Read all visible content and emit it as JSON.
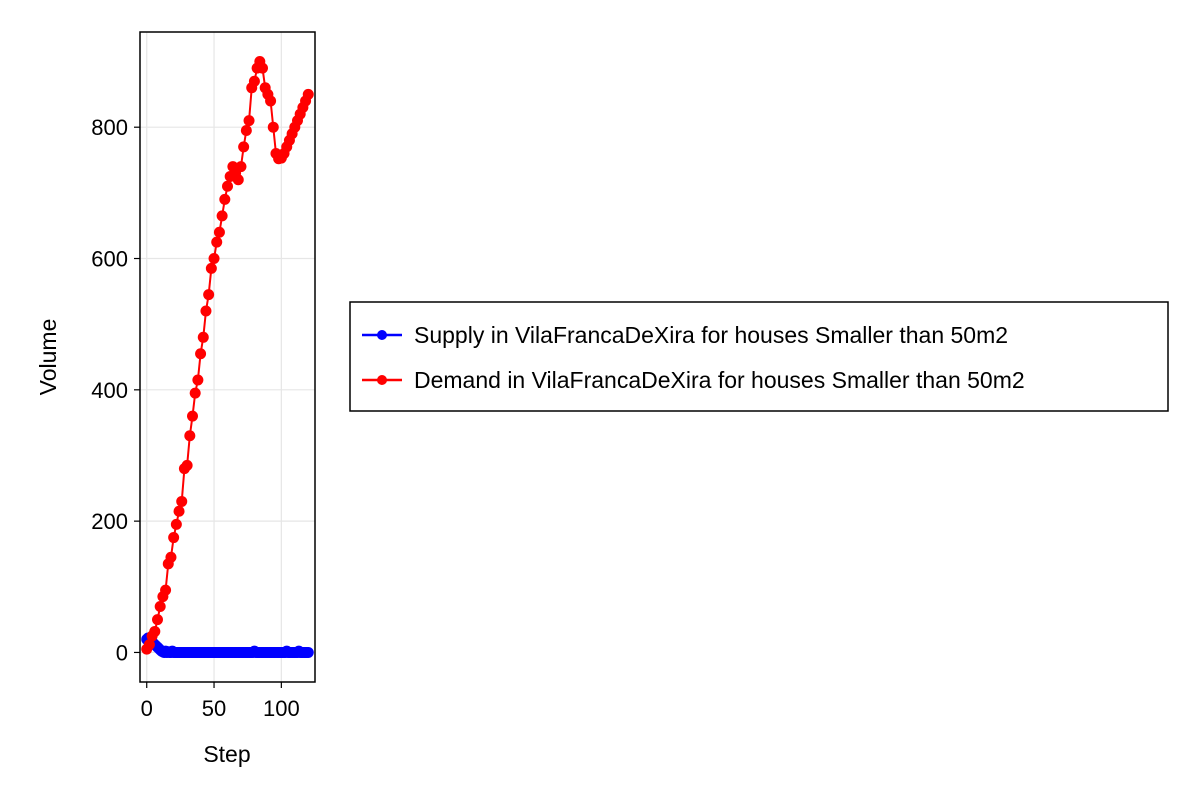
{
  "chart_data": {
    "type": "line",
    "xlabel": "Step",
    "ylabel": "Volume",
    "xlim": [
      -5,
      125
    ],
    "ylim": [
      -45,
      945
    ],
    "xticks": [
      0,
      50,
      100
    ],
    "yticks": [
      0,
      200,
      400,
      600,
      800
    ],
    "grid": true,
    "legend_position": "right",
    "series": [
      {
        "name": "Supply in VilaFrancaDeXira for houses Smaller than 50m2",
        "color": "#0000ff",
        "x": [
          0,
          1,
          2,
          3,
          4,
          5,
          6,
          7,
          8,
          9,
          10,
          11,
          12,
          13,
          14,
          15,
          16,
          17,
          18,
          19,
          20,
          21,
          22,
          23,
          24,
          25,
          26,
          27,
          28,
          29,
          30,
          31,
          32,
          33,
          34,
          35,
          36,
          37,
          38,
          39,
          40,
          41,
          42,
          43,
          44,
          45,
          46,
          47,
          48,
          49,
          50,
          51,
          52,
          53,
          54,
          55,
          56,
          57,
          58,
          59,
          60,
          61,
          62,
          63,
          64,
          65,
          66,
          67,
          68,
          69,
          70,
          71,
          72,
          73,
          74,
          75,
          76,
          77,
          78,
          79,
          80,
          81,
          82,
          83,
          84,
          85,
          86,
          87,
          88,
          89,
          90,
          91,
          92,
          93,
          94,
          95,
          96,
          97,
          98,
          99,
          100,
          101,
          102,
          103,
          104,
          105,
          106,
          107,
          108,
          109,
          110,
          111,
          112,
          113,
          114,
          115,
          116,
          117,
          118,
          119,
          120
        ],
        "y": [
          20,
          22,
          18,
          20,
          16,
          14,
          12,
          10,
          8,
          6,
          4,
          2,
          1,
          0,
          2,
          0,
          1,
          0,
          0,
          2,
          0,
          0,
          0,
          0,
          0,
          0,
          0,
          0,
          0,
          0,
          0,
          0,
          0,
          0,
          0,
          0,
          0,
          0,
          0,
          0,
          0,
          0,
          0,
          0,
          0,
          0,
          0,
          0,
          0,
          0,
          0,
          0,
          0,
          0,
          0,
          0,
          0,
          0,
          0,
          0,
          0,
          0,
          0,
          0,
          0,
          0,
          0,
          0,
          0,
          0,
          0,
          0,
          0,
          0,
          0,
          0,
          0,
          0,
          0,
          0,
          2,
          0,
          0,
          0,
          0,
          0,
          0,
          0,
          0,
          0,
          0,
          0,
          0,
          0,
          0,
          0,
          0,
          0,
          0,
          0,
          0,
          0,
          0,
          0,
          2,
          0,
          0,
          0,
          0,
          0,
          0,
          0,
          0,
          2,
          0,
          0,
          0,
          0,
          0,
          0,
          0
        ]
      },
      {
        "name": "Demand in VilaFrancaDeXira for houses Smaller than 50m2",
        "color": "#ff0000",
        "x": [
          0,
          2,
          4,
          6,
          8,
          10,
          12,
          14,
          16,
          18,
          20,
          22,
          24,
          26,
          28,
          30,
          32,
          34,
          36,
          38,
          40,
          42,
          44,
          46,
          48,
          50,
          52,
          54,
          56,
          58,
          60,
          62,
          64,
          66,
          68,
          70,
          72,
          74,
          76,
          78,
          80,
          82,
          84,
          86,
          88,
          90,
          92,
          94,
          96,
          98,
          100,
          102,
          104,
          106,
          108,
          110,
          112,
          114,
          116,
          118,
          120
        ],
        "y": [
          5,
          12,
          25,
          32,
          50,
          70,
          85,
          95,
          135,
          145,
          175,
          195,
          215,
          230,
          280,
          285,
          330,
          360,
          395,
          415,
          455,
          480,
          520,
          545,
          585,
          600,
          625,
          640,
          665,
          690,
          710,
          725,
          740,
          730,
          720,
          740,
          770,
          795,
          810,
          860,
          870,
          890,
          900,
          890,
          860,
          850,
          840,
          800,
          760,
          752,
          753,
          760,
          770,
          780,
          790,
          800,
          810,
          820,
          830,
          840,
          850
        ]
      }
    ]
  }
}
